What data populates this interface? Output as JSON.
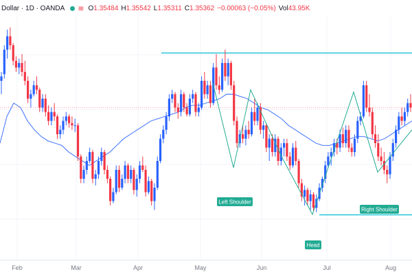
{
  "header": {
    "symbol": "Dollar · 1D · OANDA",
    "open_label": "O",
    "open": "1.35484",
    "high_label": "H",
    "high": "1.35542",
    "low_label": "L",
    "low": "1.35311",
    "close_label": "C",
    "close": "1.35362",
    "change": "−0.00063 (−0.05%)",
    "volume_label": "Vol",
    "volume": "43.95K",
    "status_icon": "market-open-dot-icon",
    "wave_icon": "wave-icon"
  },
  "colors": {
    "up": "#2962ff",
    "down": "#f23645",
    "ma": "#2962ff",
    "level": "#26c6da",
    "pattern": "#22ab94",
    "grid": "#f0f3fa"
  },
  "annotations": {
    "left_shoulder": "Left Shoulder",
    "head": "Head",
    "right_shoulder": "Right Shoulder"
  },
  "chart_data": {
    "type": "candlestick",
    "x_ticks": [
      "Feb",
      "Mar",
      "Apr",
      "May",
      "Jun",
      "Jul",
      "Aug"
    ],
    "ylim": [
      0.0,
      1.0
    ],
    "levels": {
      "resistance": 0.885,
      "support": 0.158,
      "last_close": 0.64
    },
    "candles": [
      [
        0.76,
        0.8,
        0.7,
        0.78
      ],
      [
        0.79,
        0.92,
        0.77,
        0.9
      ],
      [
        0.9,
        0.99,
        0.86,
        0.96
      ],
      [
        0.96,
        1.0,
        0.9,
        0.92
      ],
      [
        0.92,
        0.93,
        0.83,
        0.85
      ],
      [
        0.85,
        0.87,
        0.8,
        0.82
      ],
      [
        0.82,
        0.86,
        0.79,
        0.84
      ],
      [
        0.84,
        0.88,
        0.78,
        0.8
      ],
      [
        0.8,
        0.85,
        0.74,
        0.76
      ],
      [
        0.76,
        0.78,
        0.66,
        0.68
      ],
      [
        0.68,
        0.72,
        0.64,
        0.7
      ],
      [
        0.7,
        0.76,
        0.69,
        0.74
      ],
      [
        0.74,
        0.78,
        0.7,
        0.72
      ],
      [
        0.72,
        0.73,
        0.62,
        0.64
      ],
      [
        0.64,
        0.7,
        0.62,
        0.68
      ],
      [
        0.68,
        0.7,
        0.6,
        0.62
      ],
      [
        0.62,
        0.65,
        0.56,
        0.58
      ],
      [
        0.58,
        0.64,
        0.56,
        0.62
      ],
      [
        0.62,
        0.66,
        0.58,
        0.6
      ],
      [
        0.6,
        0.61,
        0.5,
        0.52
      ],
      [
        0.52,
        0.56,
        0.5,
        0.54
      ],
      [
        0.54,
        0.6,
        0.52,
        0.58
      ],
      [
        0.58,
        0.62,
        0.56,
        0.6
      ],
      [
        0.6,
        0.61,
        0.55,
        0.57
      ],
      [
        0.57,
        0.6,
        0.54,
        0.56
      ],
      [
        0.56,
        0.59,
        0.53,
        0.56
      ],
      [
        0.56,
        0.57,
        0.4,
        0.42
      ],
      [
        0.42,
        0.43,
        0.3,
        0.32
      ],
      [
        0.32,
        0.38,
        0.3,
        0.36
      ],
      [
        0.36,
        0.42,
        0.34,
        0.4
      ],
      [
        0.4,
        0.46,
        0.39,
        0.44
      ],
      [
        0.44,
        0.45,
        0.3,
        0.32
      ],
      [
        0.32,
        0.36,
        0.29,
        0.34
      ],
      [
        0.34,
        0.42,
        0.32,
        0.4
      ],
      [
        0.4,
        0.46,
        0.38,
        0.44
      ],
      [
        0.44,
        0.45,
        0.34,
        0.36
      ],
      [
        0.36,
        0.38,
        0.3,
        0.32
      ],
      [
        0.32,
        0.33,
        0.2,
        0.22
      ],
      [
        0.22,
        0.28,
        0.21,
        0.26
      ],
      [
        0.26,
        0.38,
        0.25,
        0.36
      ],
      [
        0.36,
        0.38,
        0.26,
        0.28
      ],
      [
        0.28,
        0.34,
        0.27,
        0.32
      ],
      [
        0.32,
        0.4,
        0.3,
        0.38
      ],
      [
        0.38,
        0.39,
        0.3,
        0.32
      ],
      [
        0.32,
        0.38,
        0.3,
        0.36
      ],
      [
        0.36,
        0.37,
        0.25,
        0.27
      ],
      [
        0.27,
        0.34,
        0.24,
        0.32
      ],
      [
        0.32,
        0.4,
        0.3,
        0.38
      ],
      [
        0.38,
        0.42,
        0.35,
        0.36
      ],
      [
        0.36,
        0.38,
        0.24,
        0.26
      ],
      [
        0.26,
        0.33,
        0.25,
        0.31
      ],
      [
        0.31,
        0.32,
        0.2,
        0.22
      ],
      [
        0.22,
        0.3,
        0.18,
        0.28
      ],
      [
        0.28,
        0.42,
        0.27,
        0.4
      ],
      [
        0.4,
        0.52,
        0.39,
        0.5
      ],
      [
        0.5,
        0.56,
        0.48,
        0.54
      ],
      [
        0.54,
        0.62,
        0.52,
        0.6
      ],
      [
        0.6,
        0.7,
        0.58,
        0.68
      ],
      [
        0.68,
        0.72,
        0.66,
        0.7
      ],
      [
        0.7,
        0.71,
        0.62,
        0.64
      ],
      [
        0.64,
        0.66,
        0.59,
        0.62
      ],
      [
        0.62,
        0.72,
        0.6,
        0.7
      ],
      [
        0.7,
        0.71,
        0.62,
        0.64
      ],
      [
        0.64,
        0.66,
        0.6,
        0.61
      ],
      [
        0.61,
        0.7,
        0.6,
        0.68
      ],
      [
        0.68,
        0.72,
        0.66,
        0.7
      ],
      [
        0.7,
        0.71,
        0.6,
        0.62
      ],
      [
        0.62,
        0.66,
        0.6,
        0.64
      ],
      [
        0.64,
        0.78,
        0.63,
        0.76
      ],
      [
        0.76,
        0.8,
        0.68,
        0.7
      ],
      [
        0.7,
        0.76,
        0.68,
        0.74
      ],
      [
        0.74,
        0.76,
        0.64,
        0.66
      ],
      [
        0.66,
        0.84,
        0.65,
        0.82
      ],
      [
        0.82,
        0.88,
        0.72,
        0.74
      ],
      [
        0.74,
        0.78,
        0.7,
        0.72
      ],
      [
        0.72,
        0.86,
        0.71,
        0.84
      ],
      [
        0.84,
        0.9,
        0.76,
        0.78
      ],
      [
        0.78,
        0.86,
        0.74,
        0.84
      ],
      [
        0.84,
        0.85,
        0.72,
        0.74
      ],
      [
        0.74,
        0.76,
        0.56,
        0.58
      ],
      [
        0.58,
        0.6,
        0.46,
        0.48
      ],
      [
        0.48,
        0.54,
        0.46,
        0.52
      ],
      [
        0.52,
        0.56,
        0.48,
        0.5
      ],
      [
        0.5,
        0.56,
        0.47,
        0.54
      ],
      [
        0.54,
        0.58,
        0.5,
        0.52
      ],
      [
        0.52,
        0.64,
        0.51,
        0.62
      ],
      [
        0.62,
        0.68,
        0.56,
        0.58
      ],
      [
        0.58,
        0.66,
        0.56,
        0.64
      ],
      [
        0.64,
        0.66,
        0.52,
        0.54
      ],
      [
        0.54,
        0.58,
        0.5,
        0.56
      ],
      [
        0.56,
        0.57,
        0.44,
        0.46
      ],
      [
        0.46,
        0.52,
        0.4,
        0.5
      ],
      [
        0.5,
        0.52,
        0.42,
        0.44
      ],
      [
        0.44,
        0.52,
        0.42,
        0.5
      ],
      [
        0.5,
        0.51,
        0.38,
        0.4
      ],
      [
        0.4,
        0.48,
        0.38,
        0.46
      ],
      [
        0.46,
        0.5,
        0.42,
        0.48
      ],
      [
        0.48,
        0.5,
        0.4,
        0.42
      ],
      [
        0.42,
        0.44,
        0.36,
        0.38
      ],
      [
        0.38,
        0.48,
        0.37,
        0.46
      ],
      [
        0.46,
        0.49,
        0.38,
        0.4
      ],
      [
        0.4,
        0.41,
        0.28,
        0.3
      ],
      [
        0.3,
        0.32,
        0.22,
        0.24
      ],
      [
        0.24,
        0.29,
        0.2,
        0.27
      ],
      [
        0.27,
        0.28,
        0.2,
        0.22
      ],
      [
        0.22,
        0.27,
        0.18,
        0.25
      ],
      [
        0.25,
        0.26,
        0.17,
        0.19
      ],
      [
        0.19,
        0.25,
        0.17,
        0.23
      ],
      [
        0.23,
        0.3,
        0.22,
        0.28
      ],
      [
        0.28,
        0.33,
        0.26,
        0.32
      ],
      [
        0.32,
        0.4,
        0.3,
        0.38
      ],
      [
        0.38,
        0.44,
        0.37,
        0.42
      ],
      [
        0.42,
        0.46,
        0.38,
        0.44
      ],
      [
        0.44,
        0.5,
        0.42,
        0.48
      ],
      [
        0.48,
        0.5,
        0.43,
        0.46
      ],
      [
        0.46,
        0.54,
        0.44,
        0.52
      ],
      [
        0.52,
        0.55,
        0.46,
        0.48
      ],
      [
        0.48,
        0.56,
        0.46,
        0.54
      ],
      [
        0.54,
        0.56,
        0.44,
        0.46
      ],
      [
        0.46,
        0.48,
        0.42,
        0.44
      ],
      [
        0.44,
        0.52,
        0.42,
        0.5
      ],
      [
        0.5,
        0.6,
        0.48,
        0.58
      ],
      [
        0.58,
        0.62,
        0.56,
        0.6
      ],
      [
        0.6,
        0.76,
        0.59,
        0.74
      ],
      [
        0.74,
        0.76,
        0.62,
        0.64
      ],
      [
        0.64,
        0.7,
        0.6,
        0.62
      ],
      [
        0.62,
        0.64,
        0.5,
        0.52
      ],
      [
        0.52,
        0.56,
        0.46,
        0.48
      ],
      [
        0.48,
        0.52,
        0.4,
        0.42
      ],
      [
        0.42,
        0.46,
        0.38,
        0.4
      ],
      [
        0.4,
        0.44,
        0.34,
        0.36
      ],
      [
        0.36,
        0.38,
        0.3,
        0.34
      ],
      [
        0.34,
        0.44,
        0.32,
        0.42
      ],
      [
        0.42,
        0.5,
        0.4,
        0.48
      ],
      [
        0.48,
        0.56,
        0.46,
        0.54
      ],
      [
        0.54,
        0.62,
        0.52,
        0.6
      ],
      [
        0.6,
        0.64,
        0.56,
        0.58
      ],
      [
        0.58,
        0.64,
        0.56,
        0.62
      ],
      [
        0.62,
        0.68,
        0.6,
        0.66
      ],
      [
        0.66,
        0.7,
        0.62,
        0.64
      ]
    ],
    "moving_average": [
      [
        0,
        0.48
      ],
      [
        10,
        0.6
      ],
      [
        20,
        0.66
      ],
      [
        30,
        0.64
      ],
      [
        40,
        0.58
      ],
      [
        50,
        0.54
      ],
      [
        60,
        0.51
      ],
      [
        70,
        0.49
      ],
      [
        80,
        0.48
      ],
      [
        90,
        0.47
      ],
      [
        100,
        0.44
      ],
      [
        110,
        0.42
      ],
      [
        120,
        0.4
      ],
      [
        130,
        0.38
      ],
      [
        140,
        0.4
      ],
      [
        150,
        0.42
      ],
      [
        160,
        0.44
      ],
      [
        170,
        0.47
      ],
      [
        180,
        0.5
      ],
      [
        190,
        0.52
      ],
      [
        200,
        0.54
      ],
      [
        210,
        0.56
      ],
      [
        220,
        0.58
      ],
      [
        230,
        0.59
      ],
      [
        240,
        0.6
      ],
      [
        250,
        0.61
      ],
      [
        260,
        0.62
      ],
      [
        270,
        0.64
      ],
      [
        280,
        0.65
      ],
      [
        290,
        0.65
      ],
      [
        300,
        0.66
      ],
      [
        310,
        0.67
      ],
      [
        320,
        0.68
      ],
      [
        330,
        0.7
      ],
      [
        340,
        0.7
      ],
      [
        350,
        0.69
      ],
      [
        360,
        0.68
      ],
      [
        370,
        0.66
      ],
      [
        380,
        0.64
      ],
      [
        390,
        0.63
      ],
      [
        400,
        0.61
      ],
      [
        410,
        0.59
      ],
      [
        420,
        0.56
      ],
      [
        430,
        0.54
      ],
      [
        440,
        0.52
      ],
      [
        450,
        0.5
      ],
      [
        460,
        0.48
      ],
      [
        470,
        0.47
      ],
      [
        480,
        0.47
      ],
      [
        490,
        0.48
      ],
      [
        500,
        0.49
      ],
      [
        510,
        0.5
      ],
      [
        520,
        0.51
      ],
      [
        530,
        0.51
      ],
      [
        540,
        0.5
      ],
      [
        550,
        0.49
      ],
      [
        560,
        0.5
      ],
      [
        570,
        0.52
      ],
      [
        580,
        0.54
      ],
      [
        590,
        0.56
      ],
      [
        600,
        0.58
      ]
    ],
    "pattern_line": [
      [
        310,
        0.75
      ],
      [
        340,
        0.37
      ],
      [
        365,
        0.72
      ],
      [
        410,
        0.42
      ],
      [
        455,
        0.16
      ],
      [
        515,
        0.71
      ],
      [
        550,
        0.35
      ],
      [
        600,
        0.54
      ]
    ]
  }
}
